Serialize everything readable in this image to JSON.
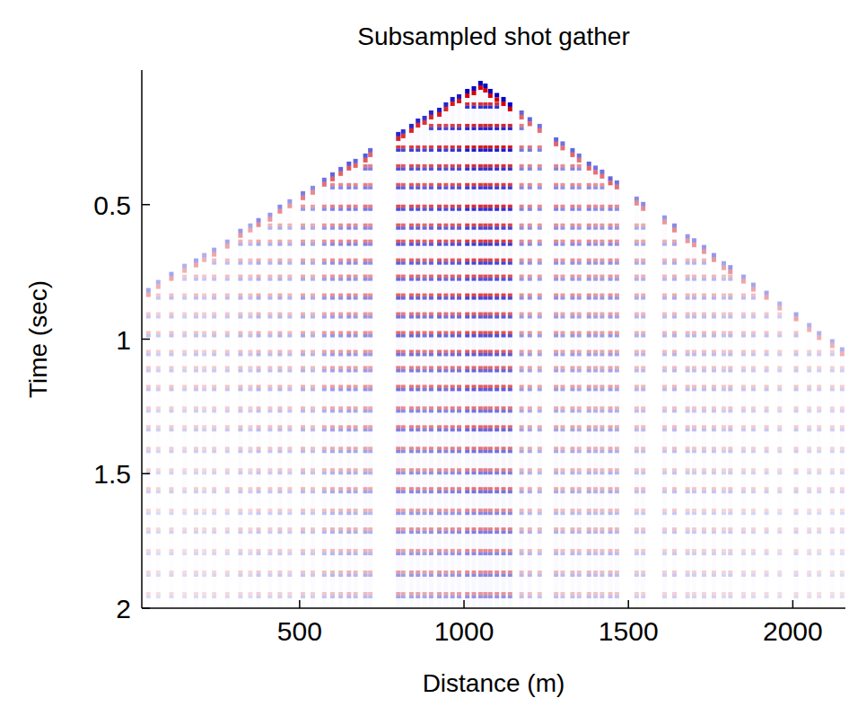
{
  "chart_data": {
    "type": "seismic",
    "title": "Subsampled shot gather",
    "x_label": "Distance (m)",
    "y_label": "Time (sec)",
    "xlim": [
      20,
      2160
    ],
    "ylim": [
      0,
      2
    ],
    "xticks": [
      500,
      1000,
      1500,
      2000
    ],
    "yticks": [
      0.5,
      1,
      1.5,
      2
    ],
    "traces": {
      "x": [
        40,
        70,
        110,
        150,
        185,
        210,
        240,
        280,
        320,
        350,
        375,
        410,
        440,
        470,
        510,
        540,
        575,
        600,
        625,
        650,
        670,
        700,
        715,
        800,
        815,
        840,
        860,
        880,
        900,
        925,
        945,
        965,
        985,
        1010,
        1030,
        1050,
        1065,
        1080,
        1100,
        1120,
        1140,
        1175,
        1200,
        1230,
        1280,
        1300,
        1330,
        1350,
        1380,
        1400,
        1420,
        1445,
        1465,
        1525,
        1545,
        1610,
        1640,
        1680,
        1700,
        1730,
        1760,
        1790,
        1810,
        1850,
        1880,
        1920,
        1960,
        2010,
        2050,
        2080,
        2120,
        2150
      ],
      "first_break": [
        0.81,
        0.78,
        0.75,
        0.72,
        0.7,
        0.68,
        0.66,
        0.63,
        0.59,
        0.57,
        0.55,
        0.53,
        0.5,
        0.48,
        0.45,
        0.43,
        0.4,
        0.38,
        0.36,
        0.34,
        0.33,
        0.31,
        0.29,
        0.23,
        0.22,
        0.2,
        0.18,
        0.17,
        0.15,
        0.14,
        0.12,
        0.1,
        0.09,
        0.07,
        0.06,
        0.04,
        0.05,
        0.07,
        0.085,
        0.1,
        0.12,
        0.15,
        0.175,
        0.2,
        0.25,
        0.265,
        0.29,
        0.31,
        0.34,
        0.355,
        0.37,
        0.395,
        0.41,
        0.47,
        0.49,
        0.54,
        0.57,
        0.61,
        0.625,
        0.65,
        0.68,
        0.71,
        0.725,
        0.76,
        0.79,
        0.82,
        0.86,
        0.9,
        0.94,
        0.97,
        1.0,
        1.03
      ],
      "amplitude": [
        0.35,
        0.3,
        0.35,
        0.3,
        0.35,
        0.3,
        0.35,
        0.35,
        0.4,
        0.35,
        0.45,
        0.4,
        0.45,
        0.4,
        0.5,
        0.45,
        0.55,
        0.6,
        0.6,
        0.65,
        0.6,
        0.65,
        0.6,
        0.85,
        0.8,
        0.85,
        0.85,
        0.8,
        0.85,
        0.9,
        0.85,
        0.9,
        0.9,
        1.0,
        1.0,
        1.0,
        1.0,
        1.0,
        1.0,
        1.0,
        1.0,
        0.6,
        0.6,
        0.55,
        0.6,
        0.55,
        0.6,
        0.55,
        0.6,
        0.55,
        0.55,
        0.6,
        0.55,
        0.45,
        0.45,
        0.4,
        0.45,
        0.4,
        0.4,
        0.4,
        0.4,
        0.35,
        0.4,
        0.35,
        0.35,
        0.35,
        0.3,
        0.35,
        0.3,
        0.3,
        0.3,
        0.3
      ]
    },
    "events": {
      "time": [
        0.12,
        0.2,
        0.28,
        0.35,
        0.42,
        0.5,
        0.57,
        0.63,
        0.7,
        0.76,
        0.83,
        0.9,
        0.97,
        1.04,
        1.1,
        1.17,
        1.25,
        1.32,
        1.4,
        1.48,
        1.55,
        1.63,
        1.7,
        1.78,
        1.86,
        1.94
      ],
      "amplitude": [
        0.9,
        0.95,
        1,
        0.9,
        0.85,
        0.9,
        0.8,
        0.85,
        0.8,
        0.75,
        0.8,
        0.7,
        0.75,
        0.7,
        0.65,
        0.7,
        0.6,
        0.65,
        0.6,
        0.55,
        0.6,
        0.5,
        0.55,
        0.5,
        0.5,
        0.45
      ]
    }
  }
}
